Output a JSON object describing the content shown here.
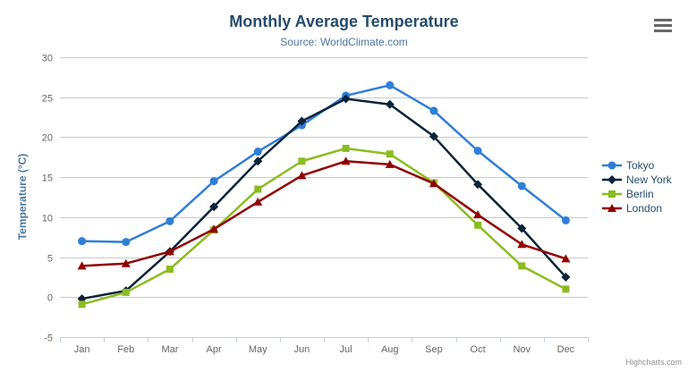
{
  "chart": {
    "title": "Monthly Average Temperature",
    "subtitle": "Source: WorldClimate.com",
    "credits": "Highcharts.com"
  },
  "chart_data": {
    "type": "line",
    "title": "Monthly Average Temperature",
    "subtitle": "Source: WorldClimate.com",
    "xlabel": "",
    "ylabel": "Temperature (°C)",
    "ylim": [
      -5,
      30
    ],
    "ytick_interval": 5,
    "grid": true,
    "legend_position": "right",
    "categories": [
      "Jan",
      "Feb",
      "Mar",
      "Apr",
      "May",
      "Jun",
      "Jul",
      "Aug",
      "Sep",
      "Oct",
      "Nov",
      "Dec"
    ],
    "series": [
      {
        "name": "Tokyo",
        "color": "#2f7ed8",
        "marker": "circle",
        "values": [
          7.0,
          6.9,
          9.5,
          14.5,
          18.2,
          21.5,
          25.2,
          26.5,
          23.3,
          18.3,
          13.9,
          9.6
        ]
      },
      {
        "name": "New York",
        "color": "#0d233a",
        "marker": "diamond",
        "values": [
          -0.2,
          0.8,
          5.7,
          11.3,
          17.0,
          22.0,
          24.8,
          24.1,
          20.1,
          14.1,
          8.6,
          2.5
        ]
      },
      {
        "name": "Berlin",
        "color": "#8bbc21",
        "marker": "square",
        "values": [
          -0.9,
          0.6,
          3.5,
          8.4,
          13.5,
          17.0,
          18.6,
          17.9,
          14.3,
          9.0,
          3.9,
          1.0
        ]
      },
      {
        "name": "London",
        "color": "#910000",
        "marker": "triangle",
        "values": [
          3.9,
          4.2,
          5.7,
          8.5,
          11.9,
          15.2,
          17.0,
          16.6,
          14.2,
          10.3,
          6.6,
          4.8
        ]
      }
    ]
  },
  "ui_colors": {
    "title": "#274b6d",
    "subtitle": "#4d759e",
    "axis_label": "#666666",
    "axis_title": "#4d759e",
    "grid_line": "#c9c9c9",
    "axis_line": "#c0d0e0",
    "legend_text": "#274b6d",
    "credits": "#909090",
    "menu_icon": "#666666",
    "background": "#ffffff"
  }
}
